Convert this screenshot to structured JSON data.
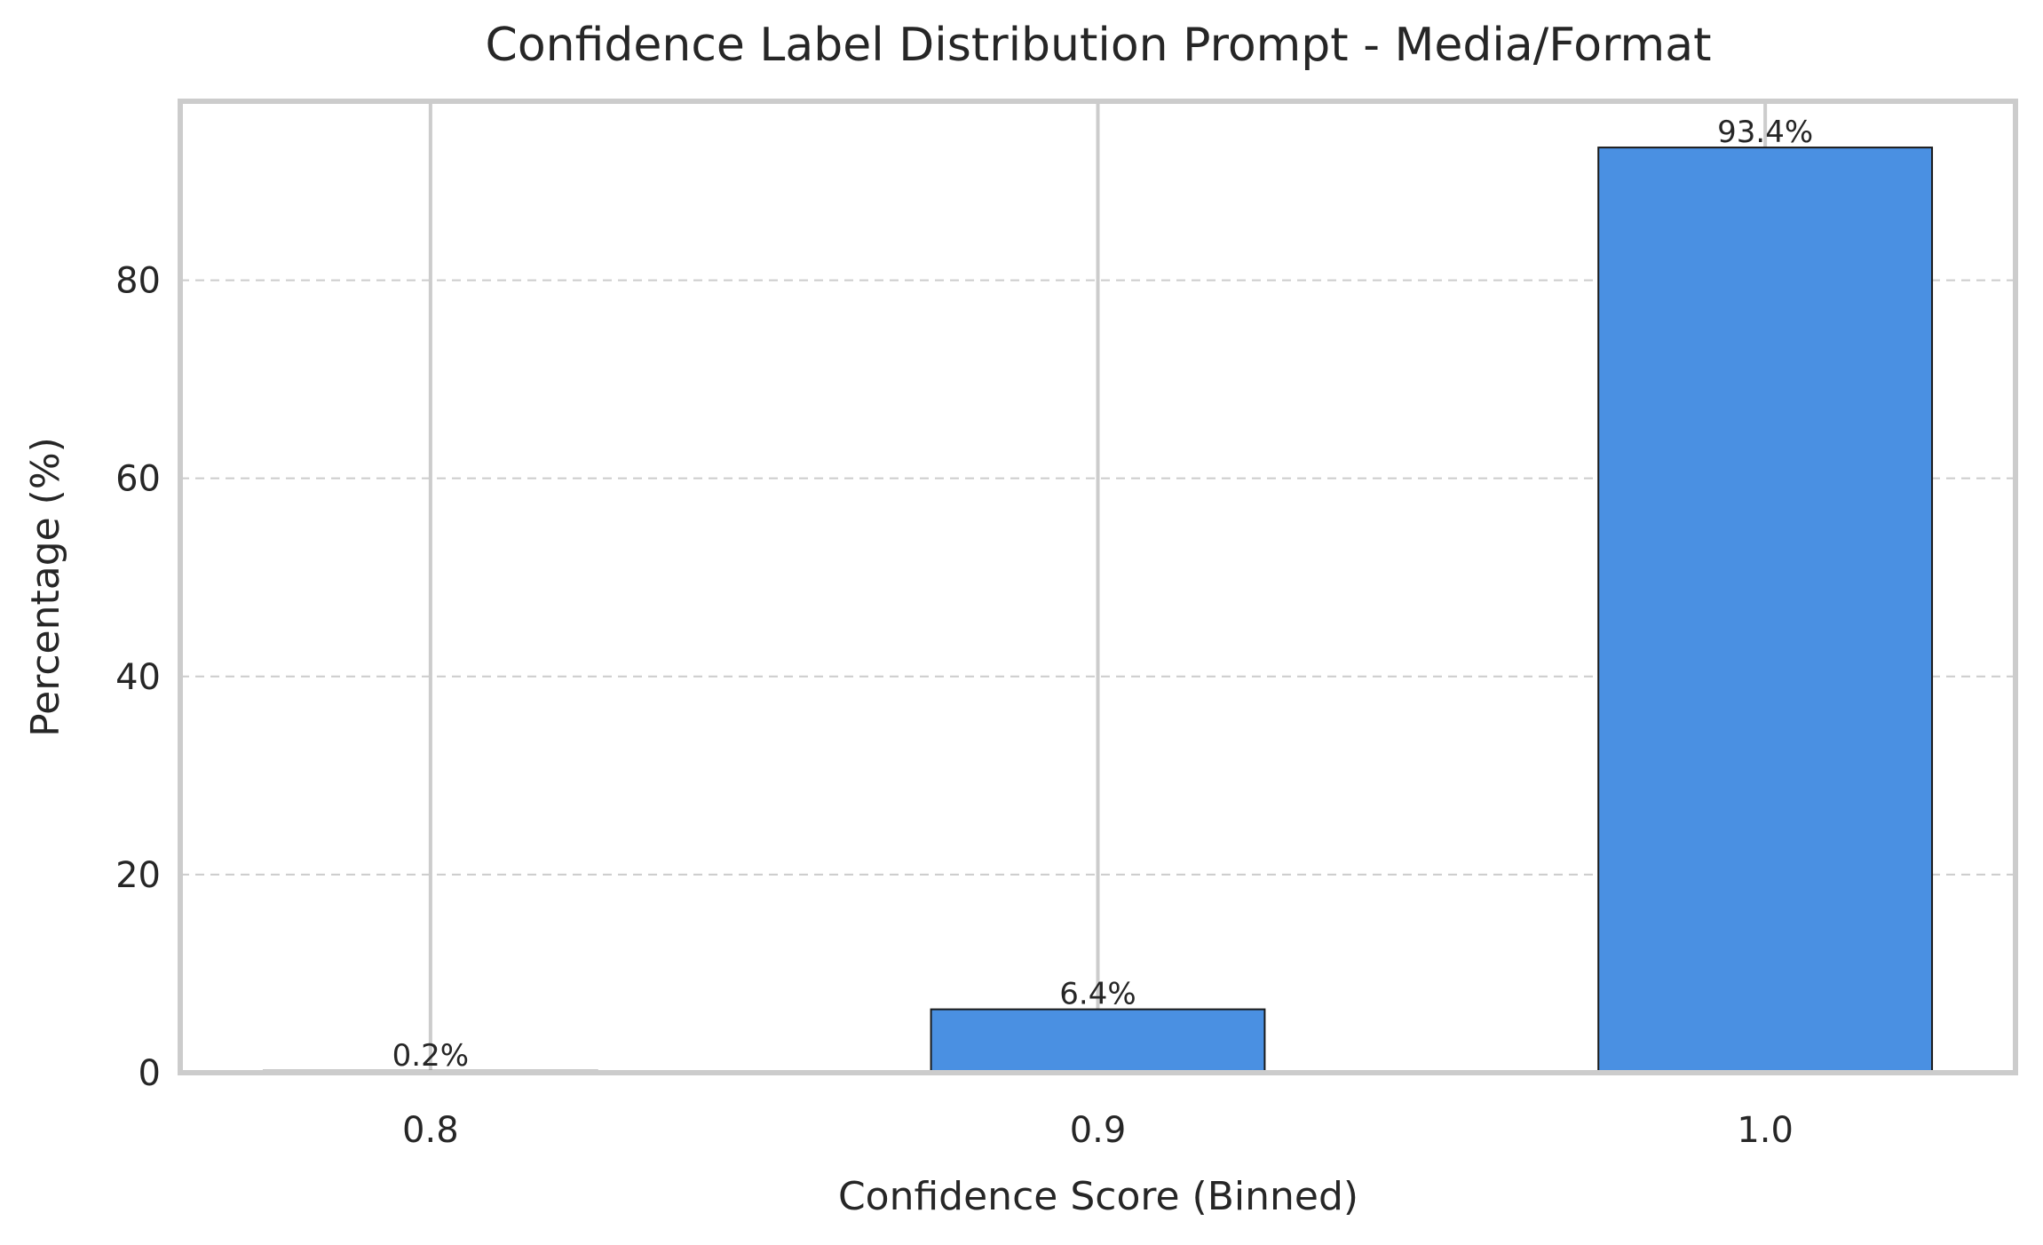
{
  "chart_data": {
    "type": "bar",
    "title": "Confidence Label Distribution Prompt - Media/Format",
    "xlabel": "Confidence Score (Binned)",
    "ylabel": "Percentage (%)",
    "categories": [
      "0.8",
      "0.9",
      "1.0"
    ],
    "values": [
      0.2,
      6.4,
      93.4
    ],
    "data_labels": [
      "0.2%",
      "6.4%",
      "93.4%"
    ],
    "ylim": [
      0,
      98.07
    ],
    "yticks": [
      0,
      20,
      40,
      60,
      80
    ],
    "grid": {
      "x": true,
      "y": true
    },
    "colors": {
      "bar": "#4a90e2",
      "bar_edge": "#1a1a1a",
      "grid": "#cccccc",
      "frame": "#cccccc"
    }
  }
}
